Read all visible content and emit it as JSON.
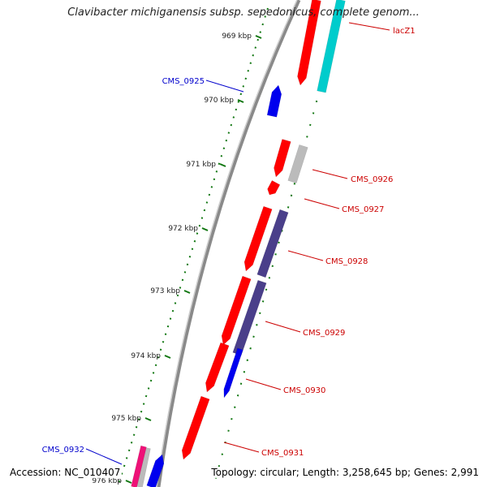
{
  "title": "Clavibacter michiganensis subsp. sepedonicus, complete genom...",
  "footer": {
    "accession": "Accession: NC_010407",
    "summary": "Topology: circular; Length: 3,258,645 bp; Genes: 2,991"
  },
  "ticks": [
    "969 kbp",
    "970 kbp",
    "971 kbp",
    "972 kbp",
    "973 kbp",
    "974 kbp",
    "975 kbp",
    "976 kbp"
  ],
  "genes": [
    {
      "name": "lacZ1",
      "color": "#cc0000"
    },
    {
      "name": "CMS_0925",
      "color": "#0000cc"
    },
    {
      "name": "CMS_0926",
      "color": "#cc0000"
    },
    {
      "name": "CMS_0927",
      "color": "#cc0000"
    },
    {
      "name": "CMS_0928",
      "color": "#cc0000"
    },
    {
      "name": "CMS_0929",
      "color": "#cc0000"
    },
    {
      "name": "CMS_0930",
      "color": "#cc0000"
    },
    {
      "name": "CMS_0931",
      "color": "#cc0000"
    },
    {
      "name": "CMS_0932",
      "color": "#0000cc"
    }
  ],
  "colors": {
    "backbone": "#8a8a8a",
    "cds": "#ff0000",
    "cds_forward": "#0000ee",
    "rrna": "#00cccc",
    "trna": "#bbbbbb",
    "other": "#4a3f8a",
    "pseudo": "#ee1177",
    "tick_marks": "#117711"
  }
}
